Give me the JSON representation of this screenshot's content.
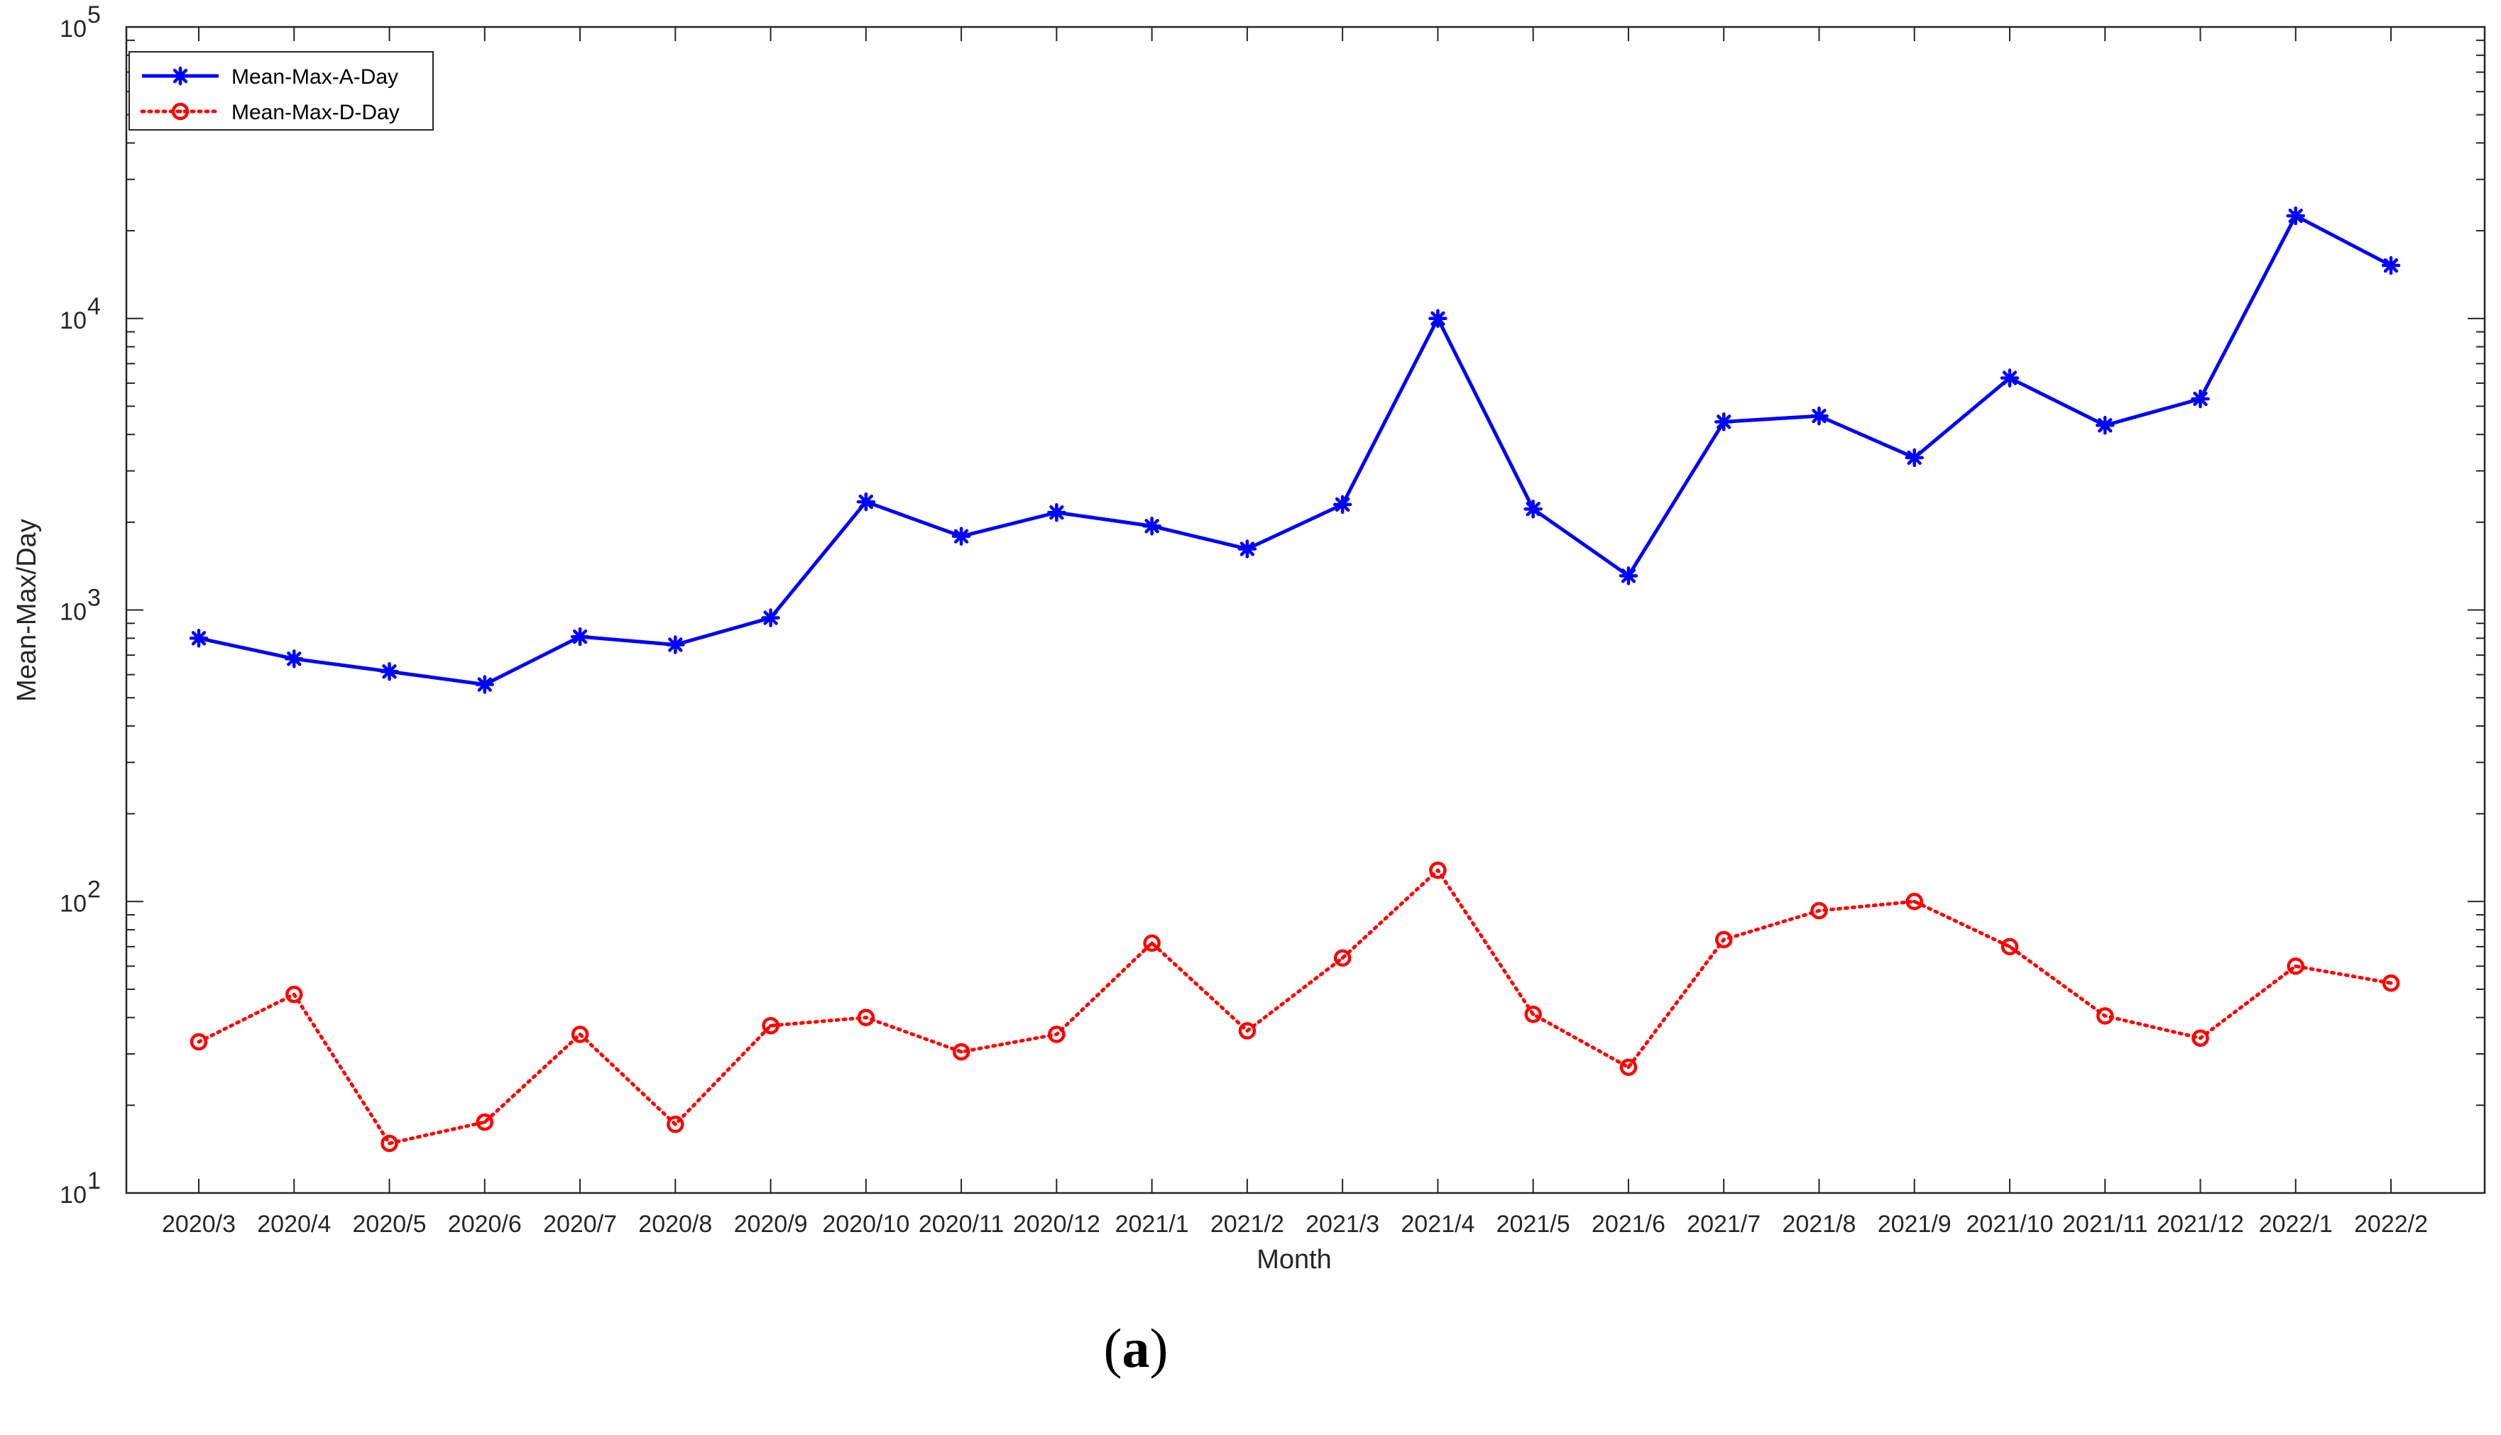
{
  "chart_data": {
    "type": "line",
    "xlabel": "Month",
    "ylabel": "Mean-Max/Day",
    "yscale": "log",
    "ylim": [
      10,
      100000
    ],
    "y_ticks": [
      {
        "value": 10,
        "base": "10",
        "exp": "1"
      },
      {
        "value": 100,
        "base": "10",
        "exp": "2"
      },
      {
        "value": 1000,
        "base": "10",
        "exp": "3"
      },
      {
        "value": 10000,
        "base": "10",
        "exp": "4"
      },
      {
        "value": 100000,
        "base": "10",
        "exp": "5"
      }
    ],
    "categories": [
      "2020/3",
      "2020/4",
      "2020/5",
      "2020/6",
      "2020/7",
      "2020/8",
      "2020/9",
      "2020/10",
      "2020/11",
      "2020/12",
      "2021/1",
      "2021/2",
      "2021/3",
      "2021/4",
      "2021/5",
      "2021/6",
      "2021/7",
      "2021/8",
      "2021/9",
      "2021/10",
      "2021/11",
      "2021/12",
      "2022/1",
      "2022/2"
    ],
    "series": [
      {
        "name": "Mean-Max-A-Day",
        "color": "#0000ff",
        "line_style": "solid",
        "marker": "asterisk",
        "values": [
          800,
          680,
          615,
          555,
          810,
          760,
          940,
          2350,
          1790,
          2160,
          1940,
          1620,
          2300,
          10000,
          2220,
          1310,
          4420,
          4630,
          3330,
          6250,
          4300,
          5300,
          22500,
          15200
        ]
      },
      {
        "name": "Mean-Max-D-Day",
        "color": "#ff0000",
        "line_style": "dotted",
        "marker": "circle",
        "values": [
          33,
          48,
          14.8,
          17.5,
          35,
          17.2,
          37.5,
          40,
          30.5,
          35,
          72,
          36,
          64,
          128,
          41,
          27,
          74,
          93,
          100,
          70,
          40.5,
          34,
          60,
          52.5
        ]
      }
    ],
    "legend": "top-left",
    "grid": false
  },
  "caption": {
    "open": "(",
    "letter": "a",
    "close": ")"
  }
}
